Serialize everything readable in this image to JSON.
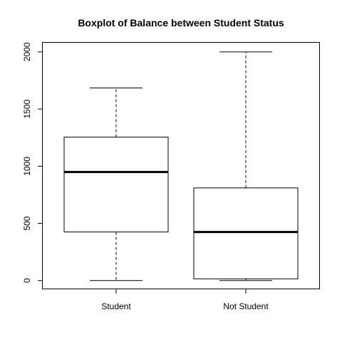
{
  "chart_data": {
    "type": "boxplot",
    "title": "Boxplot of Balance between Student Status",
    "xlabel": "",
    "ylabel": "",
    "ylim": [
      -70,
      2080
    ],
    "yticks": [
      0,
      500,
      1000,
      1500,
      2000
    ],
    "categories": [
      "Student",
      "Not Student"
    ],
    "boxes": [
      {
        "name": "Student",
        "min": 0,
        "q1": 425,
        "median": 950,
        "q3": 1255,
        "max": 1685
      },
      {
        "name": "Not Student",
        "min": 0,
        "q1": 15,
        "median": 425,
        "q3": 810,
        "max": 2000
      }
    ]
  }
}
